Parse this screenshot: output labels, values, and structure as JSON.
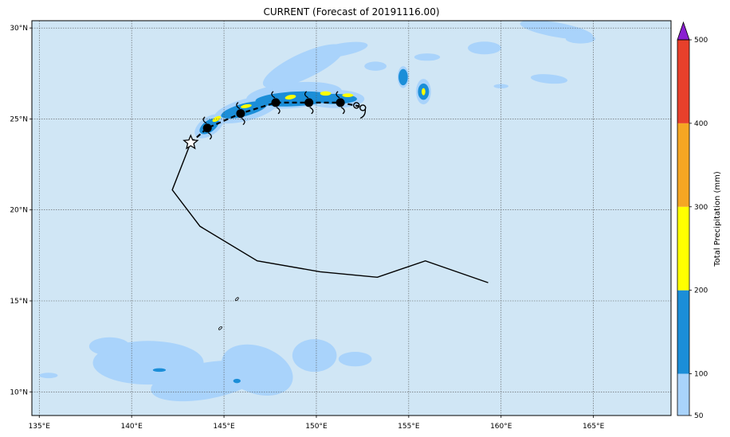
{
  "title": "CURRENT (Forecast of 20191116.00)",
  "map": {
    "lon_range": [
      134.6,
      169.2
    ],
    "lat_range": [
      8.7,
      30.4
    ],
    "lon_ticks": [
      {
        "value": 135,
        "label": "135°E"
      },
      {
        "value": 140,
        "label": "140°E"
      },
      {
        "value": 145,
        "label": "145°E"
      },
      {
        "value": 150,
        "label": "150°E"
      },
      {
        "value": 155,
        "label": "155°E"
      },
      {
        "value": 160,
        "label": "160°E"
      },
      {
        "value": 165,
        "label": "165°E"
      }
    ],
    "lat_ticks": [
      {
        "value": 10,
        "label": "10°N"
      },
      {
        "value": 15,
        "label": "15°N"
      },
      {
        "value": 20,
        "label": "20°N"
      },
      {
        "value": 25,
        "label": "25°N"
      },
      {
        "value": 30,
        "label": "30°N"
      }
    ],
    "grid": true,
    "ocean_color": "#d0e6f5"
  },
  "colorbar": {
    "label": "Total Precipitation (mm)",
    "levels": [
      {
        "value": 50,
        "label": "50",
        "color": "#a9d3fb"
      },
      {
        "value": 100,
        "label": "100",
        "color": "#1b8ed8"
      },
      {
        "value": 200,
        "label": "200",
        "color": "#1b8ed8"
      },
      {
        "value": 300,
        "label": "300",
        "color": "#ffff00"
      },
      {
        "value": 400,
        "label": "400",
        "color": "#f5a623"
      },
      {
        "value": 500,
        "label": "500",
        "color": "#e8402b"
      }
    ],
    "bands": [
      {
        "from": 50,
        "to": 100,
        "color": "#a9d3fb"
      },
      {
        "from": 100,
        "to": 200,
        "color": "#1b8ed8"
      },
      {
        "from": 200,
        "to": 300,
        "color": "#ffff00"
      },
      {
        "from": 300,
        "to": 400,
        "color": "#f5a623"
      },
      {
        "from": 400,
        "to": 500,
        "color": "#e8402b"
      }
    ],
    "extend_color": "#8a1fd1"
  },
  "past_track": [
    {
      "lon": 159.3,
      "lat": 16.0
    },
    {
      "lon": 155.9,
      "lat": 17.2
    },
    {
      "lon": 153.3,
      "lat": 16.3
    },
    {
      "lon": 150.2,
      "lat": 16.6
    },
    {
      "lon": 146.8,
      "lat": 17.2
    },
    {
      "lon": 143.7,
      "lat": 19.1
    },
    {
      "lon": 142.2,
      "lat": 21.1
    },
    {
      "lon": 143.2,
      "lat": 23.7
    }
  ],
  "current_position": {
    "lon": 143.2,
    "lat": 23.7
  },
  "forecast_track": [
    {
      "lon": 143.2,
      "lat": 23.7,
      "symbol": "none"
    },
    {
      "lon": 144.1,
      "lat": 24.5,
      "symbol": "storm"
    },
    {
      "lon": 145.9,
      "lat": 25.3,
      "symbol": "storm"
    },
    {
      "lon": 147.8,
      "lat": 25.9,
      "symbol": "storm"
    },
    {
      "lon": 149.6,
      "lat": 25.9,
      "symbol": "storm"
    },
    {
      "lon": 151.3,
      "lat": 25.9,
      "symbol": "storm"
    },
    {
      "lon": 152.3,
      "lat": 25.7,
      "symbol": "depression"
    }
  ],
  "precip_areas": [
    {
      "level": 50,
      "lon": 144.2,
      "lat": 24.6,
      "rx": 0.9,
      "ry": 0.5,
      "rot": -35
    },
    {
      "level": 50,
      "lon": 146.2,
      "lat": 25.5,
      "rx": 1.8,
      "ry": 0.6,
      "rot": -15
    },
    {
      "level": 50,
      "lon": 148.8,
      "lat": 26.3,
      "rx": 2.6,
      "ry": 0.7,
      "rot": -5
    },
    {
      "level": 50,
      "lon": 151.0,
      "lat": 26.1,
      "rx": 1.6,
      "ry": 0.5,
      "rot": 0
    },
    {
      "level": 50,
      "lon": 149.3,
      "lat": 27.9,
      "rx": 2.4,
      "ry": 0.7,
      "rot": -25
    },
    {
      "level": 50,
      "lon": 151.3,
      "lat": 28.8,
      "rx": 1.5,
      "ry": 0.35,
      "rot": -10
    },
    {
      "level": 50,
      "lon": 153.2,
      "lat": 27.9,
      "rx": 0.6,
      "ry": 0.25,
      "rot": 0
    },
    {
      "level": 50,
      "lon": 163.0,
      "lat": 29.9,
      "rx": 2.0,
      "ry": 0.4,
      "rot": 10
    },
    {
      "level": 50,
      "lon": 164.3,
      "lat": 29.4,
      "rx": 0.8,
      "ry": 0.25,
      "rot": 0
    },
    {
      "level": 50,
      "lon": 162.6,
      "lat": 27.2,
      "rx": 1.0,
      "ry": 0.25,
      "rot": 5
    },
    {
      "level": 50,
      "lon": 160.0,
      "lat": 26.8,
      "rx": 0.4,
      "ry": 0.12,
      "rot": 0
    },
    {
      "level": 50,
      "lon": 159.1,
      "lat": 28.9,
      "rx": 0.9,
      "ry": 0.35,
      "rot": 0
    },
    {
      "level": 50,
      "lon": 156.0,
      "lat": 28.4,
      "rx": 0.7,
      "ry": 0.2,
      "rot": 0
    },
    {
      "level": 50,
      "lon": 154.7,
      "lat": 27.3,
      "rx": 0.3,
      "ry": 0.6,
      "rot": 0
    },
    {
      "level": 50,
      "lon": 155.8,
      "lat": 26.5,
      "rx": 0.4,
      "ry": 0.7,
      "rot": 0
    },
    {
      "level": 50,
      "lon": 140.9,
      "lat": 11.6,
      "rx": 3.0,
      "ry": 1.2,
      "rot": 0
    },
    {
      "level": 50,
      "lon": 144.0,
      "lat": 10.6,
      "rx": 3.0,
      "ry": 1.0,
      "rot": -10
    },
    {
      "level": 50,
      "lon": 146.8,
      "lat": 11.2,
      "rx": 2.0,
      "ry": 1.3,
      "rot": 20
    },
    {
      "level": 50,
      "lon": 149.9,
      "lat": 12.0,
      "rx": 1.2,
      "ry": 0.9,
      "rot": 0
    },
    {
      "level": 50,
      "lon": 138.8,
      "lat": 12.5,
      "rx": 1.1,
      "ry": 0.5,
      "rot": 0
    },
    {
      "level": 50,
      "lon": 152.1,
      "lat": 11.8,
      "rx": 0.9,
      "ry": 0.4,
      "rot": 0
    },
    {
      "level": 50,
      "lon": 135.5,
      "lat": 10.9,
      "rx": 0.5,
      "ry": 0.15,
      "rot": 0
    },
    {
      "level": 100,
      "lon": 144.2,
      "lat": 24.6,
      "rx": 0.6,
      "ry": 0.32,
      "rot": -35
    },
    {
      "level": 100,
      "lon": 146.1,
      "lat": 25.5,
      "rx": 1.3,
      "ry": 0.35,
      "rot": -15
    },
    {
      "level": 100,
      "lon": 148.8,
      "lat": 26.1,
      "rx": 2.1,
      "ry": 0.4,
      "rot": -3
    },
    {
      "level": 100,
      "lon": 151.0,
      "lat": 26.1,
      "rx": 1.2,
      "ry": 0.28,
      "rot": 0
    },
    {
      "level": 100,
      "lon": 154.7,
      "lat": 27.3,
      "rx": 0.25,
      "ry": 0.45,
      "rot": 0
    },
    {
      "level": 100,
      "lon": 155.8,
      "lat": 26.5,
      "rx": 0.3,
      "ry": 0.45,
      "rot": 0
    },
    {
      "level": 100,
      "lon": 141.5,
      "lat": 11.2,
      "rx": 0.35,
      "ry": 0.1,
      "rot": 0
    },
    {
      "level": 100,
      "lon": 145.7,
      "lat": 10.6,
      "rx": 0.2,
      "ry": 0.12,
      "rot": 0
    },
    {
      "level": 200,
      "lon": 144.6,
      "lat": 25.0,
      "rx": 0.25,
      "ry": 0.12,
      "rot": -30
    },
    {
      "level": 200,
      "lon": 146.2,
      "lat": 25.7,
      "rx": 0.3,
      "ry": 0.1,
      "rot": -10
    },
    {
      "level": 200,
      "lon": 148.6,
      "lat": 26.2,
      "rx": 0.3,
      "ry": 0.12,
      "rot": -10
    },
    {
      "level": 200,
      "lon": 150.5,
      "lat": 26.4,
      "rx": 0.3,
      "ry": 0.12,
      "rot": 0
    },
    {
      "level": 200,
      "lon": 151.7,
      "lat": 26.3,
      "rx": 0.3,
      "ry": 0.1,
      "rot": 0
    },
    {
      "level": 200,
      "lon": 155.8,
      "lat": 26.5,
      "rx": 0.1,
      "ry": 0.2,
      "rot": 0
    }
  ],
  "islands": [
    {
      "lon": 145.7,
      "lat": 15.1
    },
    {
      "lon": 144.8,
      "lat": 13.5
    }
  ]
}
